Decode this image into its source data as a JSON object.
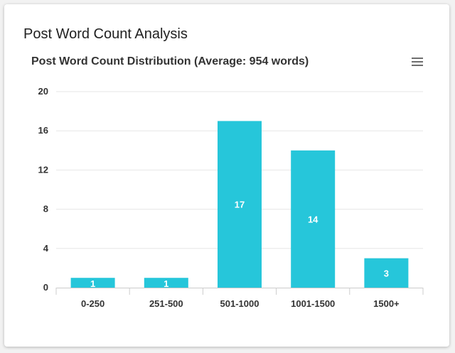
{
  "card": {
    "title": "Post Word Count Analysis"
  },
  "menu": {
    "icon": "hamburger-menu-icon"
  },
  "colors": {
    "bar": "#26c6da",
    "grid": "#e6e6e6",
    "axis": "#cccccc"
  },
  "chart_data": {
    "type": "bar",
    "title": "Post Word Count Distribution (Average: 954 words)",
    "categories": [
      "0-250",
      "251-500",
      "501-1000",
      "1001-1500",
      "1500+"
    ],
    "values": [
      1,
      1,
      17,
      14,
      3
    ],
    "xlabel": "",
    "ylabel": "",
    "ylim": [
      0,
      20
    ],
    "yticks": [
      0,
      4,
      8,
      12,
      16,
      20
    ],
    "grid": true,
    "data_labels": true,
    "legend": "none"
  }
}
